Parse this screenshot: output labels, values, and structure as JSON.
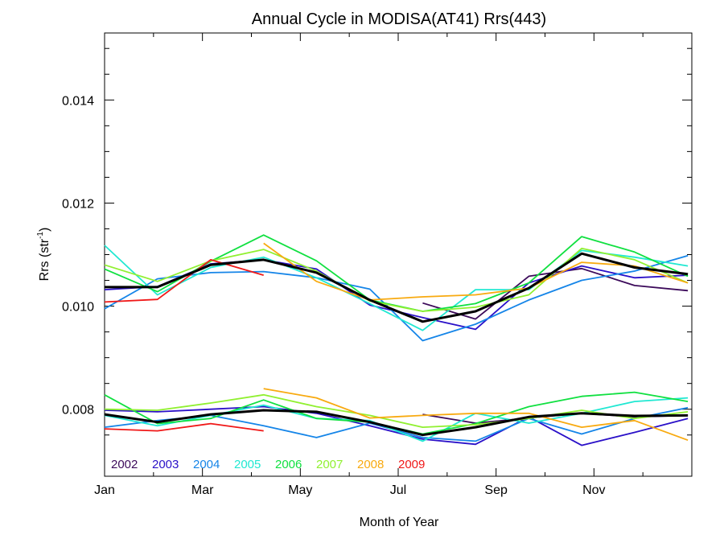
{
  "chart_data": {
    "type": "line",
    "title": "Annual Cycle in MODISA(AT41) Rrs(443)",
    "xlabel": "Month of Year",
    "ylabel": {
      "base": "Rrs (str",
      "sup": "-1",
      "close": ")"
    },
    "xlim": [
      1,
      13
    ],
    "ylim": [
      0.0067,
      0.0153
    ],
    "x_ticks": [
      {
        "value": 1,
        "label": "Jan"
      },
      {
        "value": 3,
        "label": "Mar"
      },
      {
        "value": 5,
        "label": "May"
      },
      {
        "value": 7,
        "label": "Jul"
      },
      {
        "value": 9,
        "label": "Sep"
      },
      {
        "value": 11,
        "label": "Nov"
      }
    ],
    "y_ticks": [
      {
        "value": 0.008,
        "label": "0.008"
      },
      {
        "value": 0.01,
        "label": "0.010"
      },
      {
        "value": 0.012,
        "label": "0.012"
      },
      {
        "value": 0.014,
        "label": "0.014"
      }
    ],
    "y_minor": [
      0.0075,
      0.0085,
      0.009,
      0.0095,
      0.0105,
      0.011,
      0.0115,
      0.0125,
      0.013,
      0.0135,
      0.0145,
      0.015
    ],
    "x": [
      1.0,
      2.08,
      3.17,
      4.25,
      5.33,
      6.42,
      7.5,
      8.58,
      9.67,
      10.75,
      11.83,
      12.92
    ],
    "series": [
      {
        "name": "2002",
        "color": "#3c0a5a",
        "upper": [
          null,
          null,
          null,
          null,
          null,
          null,
          0.01006,
          0.00975,
          0.01058,
          0.01073,
          0.0104,
          0.0103
        ],
        "lower": [
          null,
          null,
          null,
          null,
          null,
          null,
          0.0079,
          0.00773,
          0.00783,
          0.00792,
          0.00785,
          0.00788
        ]
      },
      {
        "name": "2003",
        "color": "#2a10c8",
        "upper": [
          0.01032,
          0.01038,
          0.01082,
          0.0109,
          0.01072,
          0.01002,
          0.00978,
          0.00955,
          0.01045,
          0.01078,
          0.01055,
          0.0106
        ],
        "lower": [
          0.00798,
          0.00795,
          0.008,
          0.00805,
          0.00792,
          0.00768,
          0.00742,
          0.00732,
          0.00785,
          0.0073,
          0.00755,
          0.00782
        ]
      },
      {
        "name": "2004",
        "color": "#1585e8",
        "upper": [
          0.00995,
          0.01053,
          0.01065,
          0.01067,
          0.01055,
          0.01033,
          0.00933,
          0.00965,
          0.01012,
          0.0105,
          0.01068,
          0.01098
        ],
        "lower": [
          0.00765,
          0.00778,
          0.00788,
          0.00768,
          0.00745,
          0.00773,
          0.00745,
          0.00738,
          0.00782,
          0.00752,
          0.00782,
          0.00803
        ]
      },
      {
        "name": "2005",
        "color": "#20e8d2",
        "upper": [
          0.01118,
          0.01022,
          0.01075,
          0.01095,
          0.01055,
          0.01005,
          0.00953,
          0.01032,
          0.01032,
          0.01108,
          0.01095,
          0.01078
        ],
        "lower": [
          0.00788,
          0.00768,
          0.00788,
          0.00808,
          0.00782,
          0.00778,
          0.00738,
          0.00792,
          0.00773,
          0.00792,
          0.00815,
          0.00822
        ]
      },
      {
        "name": "2006",
        "color": "#10e040",
        "upper": [
          0.01072,
          0.01028,
          0.01087,
          0.01138,
          0.01088,
          0.01012,
          0.0099,
          0.01005,
          0.01045,
          0.01135,
          0.01105,
          0.01058
        ],
        "lower": [
          0.00828,
          0.00772,
          0.00782,
          0.00818,
          0.00782,
          0.00775,
          0.00752,
          0.00772,
          0.00805,
          0.00825,
          0.00833,
          0.00815
        ]
      },
      {
        "name": "2007",
        "color": "#90f030",
        "upper": [
          0.0108,
          0.01048,
          0.01088,
          0.0111,
          0.01068,
          0.0101,
          0.0099,
          0.00998,
          0.01022,
          0.01112,
          0.0109,
          0.01045
        ],
        "lower": [
          0.008,
          0.00798,
          0.00812,
          0.00828,
          0.00805,
          0.00788,
          0.00765,
          0.0077,
          0.00782,
          0.00798,
          0.00782,
          0.00795
        ]
      },
      {
        "name": "2008",
        "color": "#f8aa10",
        "upper": [
          null,
          null,
          null,
          0.01122,
          0.01048,
          0.01012,
          0.01018,
          0.01022,
          0.01035,
          0.01085,
          0.01078,
          0.01045
        ],
        "lower": [
          null,
          null,
          null,
          0.0084,
          0.00822,
          0.00783,
          0.00788,
          0.00792,
          0.00792,
          0.00765,
          0.00778,
          0.0074
        ]
      },
      {
        "name": "2009",
        "color": "#f01818",
        "upper": [
          0.01008,
          0.01013,
          0.0109,
          0.0106,
          null,
          null,
          null,
          null,
          null,
          null,
          null,
          null
        ],
        "lower": [
          0.00762,
          0.00758,
          0.00772,
          0.00758,
          null,
          null,
          null,
          null,
          null,
          null,
          null,
          null
        ]
      }
    ],
    "mean": {
      "color": "#000000",
      "upper": [
        0.01037,
        0.01037,
        0.0108,
        0.0109,
        0.01065,
        0.01012,
        0.0097,
        0.0099,
        0.01035,
        0.01102,
        0.01075,
        0.01062
      ],
      "lower": [
        0.0079,
        0.00775,
        0.0079,
        0.00798,
        0.00795,
        0.00775,
        0.0075,
        0.00765,
        0.00785,
        0.00792,
        0.00787,
        0.00788
      ]
    },
    "legend_position": "bottom-left"
  }
}
